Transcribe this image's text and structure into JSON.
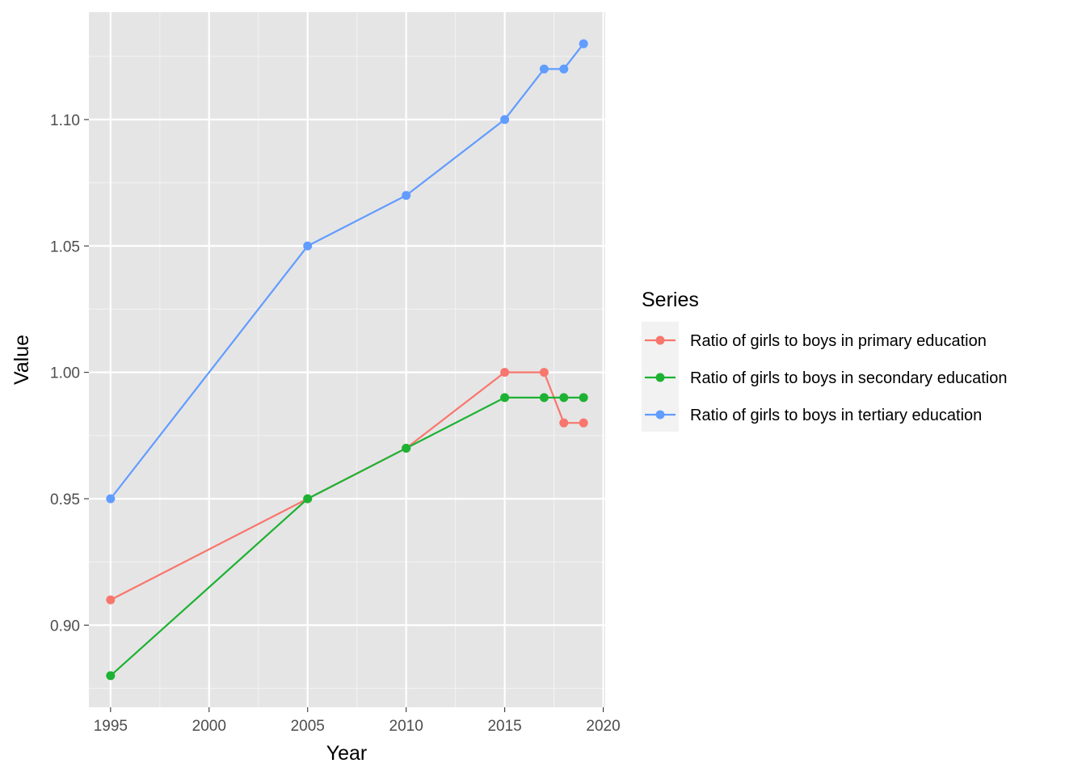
{
  "chart_data": {
    "type": "line",
    "xlabel": "Year",
    "ylabel": "Value",
    "xlim": [
      1993.9,
      2020.1
    ],
    "ylim": [
      0.8675,
      1.1425
    ],
    "x_ticks": [
      1995,
      2000,
      2005,
      2010,
      2015,
      2020
    ],
    "x_tick_labels": [
      "1995",
      "2000",
      "2005",
      "2010",
      "2015",
      "2020"
    ],
    "y_ticks": [
      0.9,
      0.95,
      1.0,
      1.05,
      1.1
    ],
    "y_tick_labels": [
      "0.90",
      "0.95",
      "1.00",
      "1.05",
      "1.10"
    ],
    "grid": true,
    "legend": {
      "title": "Series",
      "placement": "right"
    },
    "series": [
      {
        "name": "Ratio of girls to boys in primary education",
        "color": "#F8766D",
        "x": [
          1995,
          2005,
          2010,
          2015,
          2017,
          2018,
          2019
        ],
        "values": [
          0.91,
          0.95,
          0.97,
          1.0,
          1.0,
          0.98,
          0.98
        ]
      },
      {
        "name": "Ratio of girls to boys in secondary education",
        "color": "#1DB233",
        "x": [
          1995,
          2005,
          2010,
          2015,
          2017,
          2018,
          2019
        ],
        "values": [
          0.88,
          0.95,
          0.97,
          0.99,
          0.99,
          0.99,
          0.99
        ]
      },
      {
        "name": "Ratio of girls to boys in tertiary education",
        "color": "#619CFF",
        "x": [
          1995,
          2005,
          2010,
          2015,
          2017,
          2018,
          2019
        ],
        "values": [
          0.95,
          1.05,
          1.07,
          1.1,
          1.12,
          1.12,
          1.13
        ]
      }
    ]
  }
}
